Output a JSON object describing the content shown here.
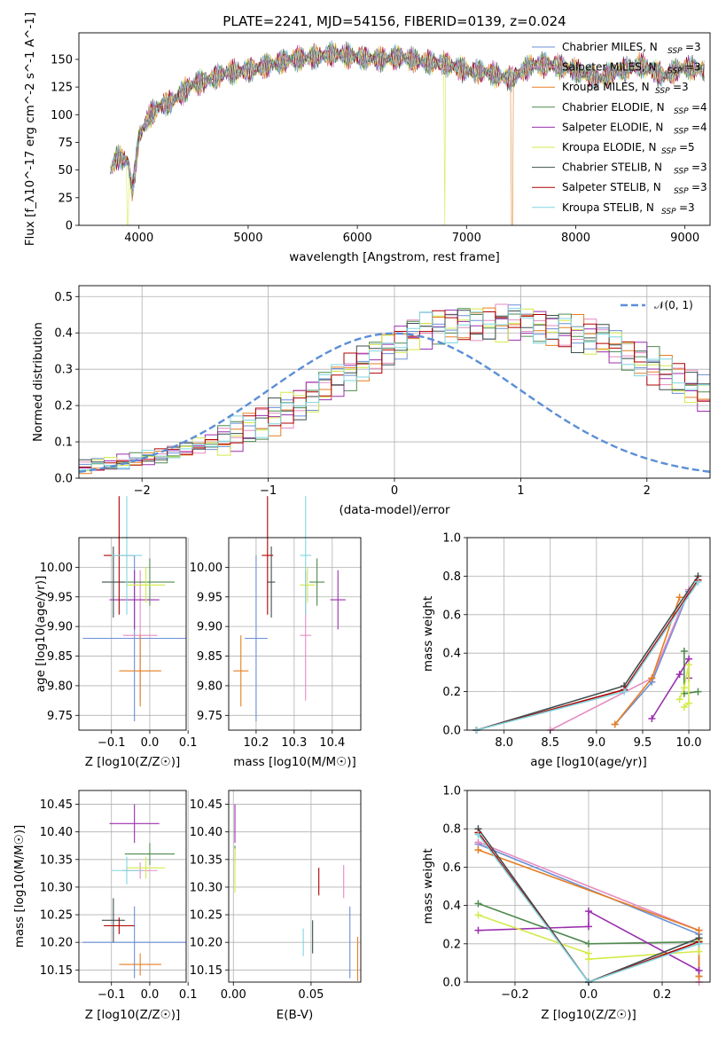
{
  "figure": {
    "title": "PLATE=2241, MJD=54156, FIBERID=0139, z=0.024",
    "models": [
      {
        "name": "Chabrier MILES, N$_{SSP}$=3",
        "legend": "Chabrier MILES, N",
        "sub": "SSP",
        "tail": "=3",
        "color": "#6b8fd6"
      },
      {
        "name": "Salpeter MILES, N$_{SSP}$=3",
        "legend": "Salpeter MILES, N",
        "sub": "SSP",
        "tail": "=3",
        "color": "#e58bc0"
      },
      {
        "name": "Kroupa MILES, N$_{SSP}$=3",
        "legend": "Kroupa MILES, N",
        "sub": "SSP",
        "tail": "=3",
        "color": "#e67e22"
      },
      {
        "name": "Chabrier ELODIE, N$_{SSP}$=4",
        "legend": "Chabrier ELODIE, N",
        "sub": "SSP",
        "tail": "=4",
        "color": "#4f8a4f"
      },
      {
        "name": "Salpeter ELODIE, N$_{SSP}$=4",
        "legend": "Salpeter ELODIE, N",
        "sub": "SSP",
        "tail": "=4",
        "color": "#9b2fae"
      },
      {
        "name": "Kroupa ELODIE, N$_{SSP}$=5",
        "legend": "Kroupa ELODIE, N",
        "sub": "SSP",
        "tail": "=5",
        "color": "#d4ea4a"
      },
      {
        "name": "Chabrier STELIB, N$_{SSP}$=3",
        "legend": "Chabrier STELIB, N",
        "sub": "SSP",
        "tail": "=3",
        "color": "#3f4f4f"
      },
      {
        "name": "Salpeter STELIB, N$_{SSP}$=3",
        "legend": "Salpeter STELIB, N",
        "sub": "SSP",
        "tail": "=3",
        "color": "#b00000"
      },
      {
        "name": "Kroupa STELIB, N$_{SSP}$=3",
        "legend": "Kroupa STELIB, N",
        "sub": "SSP",
        "tail": "=3",
        "color": "#7fd6e0"
      }
    ]
  },
  "chart_data": [
    {
      "type": "line",
      "title": "PLATE=2241, MJD=54156, FIBERID=0139, z=0.024",
      "xlabel": "wavelength [Angstrom, rest frame]",
      "ylabel": "Flux [f_λ10^-17 erg cm^-2 s^-1 A^-1]",
      "xlim": [
        3450,
        9230
      ],
      "ylim": [
        0,
        174
      ],
      "xticks": [
        4000,
        5000,
        6000,
        7000,
        8000,
        9000
      ],
      "yticks": [
        0,
        25,
        50,
        75,
        100,
        125,
        150
      ],
      "legend_loc": "upper right",
      "spectrum_envelope": {
        "x": [
          3740,
          3800,
          3900,
          3940,
          4000,
          4100,
          4200,
          4300,
          4400,
          4500,
          4600,
          4800,
          5000,
          5200,
          5400,
          5600,
          5800,
          6000,
          6200,
          6400,
          6600,
          6800,
          7000,
          7200,
          7400,
          7600,
          7800,
          8000,
          8200,
          8400,
          8600,
          8800,
          9000,
          9180
        ],
        "y": [
          50,
          62,
          58,
          30,
          80,
          100,
          108,
          112,
          120,
          128,
          130,
          138,
          140,
          145,
          150,
          152,
          155,
          152,
          150,
          152,
          148,
          146,
          140,
          138,
          132,
          145,
          145,
          140,
          132,
          140,
          145,
          135,
          143,
          140
        ]
      },
      "dropouts": [
        {
          "series": "Kroupa ELODIE, N$_{SSP}$=5",
          "x": [
            3900,
            6800
          ]
        },
        {
          "series": "Kroupa MILES, N$_{SSP}$=3",
          "x": [
            7420
          ]
        }
      ]
    },
    {
      "type": "histogram",
      "xlabel": "(data-model)/error",
      "ylabel": "Normed distribution",
      "xlim": [
        -2.5,
        2.5
      ],
      "ylim": [
        0,
        0.53
      ],
      "xticks": [
        -2,
        -1,
        0,
        1,
        2
      ],
      "yticks": [
        0.0,
        0.1,
        0.2,
        0.3,
        0.4,
        0.5
      ],
      "reference": {
        "label": "$\\mathcal{N}(0,1)$",
        "label_text": "𝒩(0, 1)",
        "color": "#5b8fd6",
        "style": "dashed"
      },
      "bin_width": 0.1,
      "base_profile": [
        0.03,
        0.035,
        0.04,
        0.045,
        0.05,
        0.055,
        0.06,
        0.07,
        0.08,
        0.09,
        0.1,
        0.11,
        0.12,
        0.135,
        0.15,
        0.17,
        0.19,
        0.21,
        0.23,
        0.25,
        0.27,
        0.295,
        0.32,
        0.34,
        0.36,
        0.38,
        0.4,
        0.41,
        0.42,
        0.425,
        0.43,
        0.43,
        0.43,
        0.43,
        0.43,
        0.425,
        0.42,
        0.415,
        0.41,
        0.4,
        0.39,
        0.38,
        0.36,
        0.345,
        0.33,
        0.31,
        0.29,
        0.27,
        0.25,
        0.23,
        0.21,
        0.19,
        0.17,
        0.15,
        0.135,
        0.12,
        0.11,
        0.1,
        0.09,
        0.08,
        0.07,
        0.06,
        0.055,
        0.05,
        0.045,
        0.04,
        0.035,
        0.03,
        0.025,
        0.022,
        0.02,
        0.018,
        0.016
      ]
    },
    {
      "type": "scatter_errorbar",
      "xlabel": "Z [log10(Z/Z☉)]",
      "ylabel": "age [log10(age/yr)]",
      "xlim": [
        -0.185,
        0.095
      ],
      "ylim": [
        9.725,
        10.05
      ],
      "xticks": [
        -0.1,
        0.0,
        0.1
      ],
      "yticks": [
        9.75,
        9.8,
        9.85,
        9.9,
        9.95,
        10.0
      ],
      "points": [
        {
          "x": -0.04,
          "y": 9.88,
          "xerr": 0.135,
          "yerr": 0.14
        },
        {
          "x": -0.025,
          "y": 9.885,
          "xerr": 0.045,
          "yerr": 0.11
        },
        {
          "x": -0.025,
          "y": 9.825,
          "xerr": 0.055,
          "yerr": 0.06
        },
        {
          "x": 0.0,
          "y": 9.975,
          "xerr": 0.065,
          "yerr": 0.04
        },
        {
          "x": -0.04,
          "y": 9.945,
          "xerr": 0.065,
          "yerr": 0.05
        },
        {
          "x": -0.01,
          "y": 9.97,
          "xerr": 0.05,
          "yerr": 0.03
        },
        {
          "x": -0.095,
          "y": 9.975,
          "xerr": 0.03,
          "yerr": 0.06
        },
        {
          "x": -0.08,
          "y": 10.02,
          "xerr": 0.04,
          "yerr": 0.1
        },
        {
          "x": -0.06,
          "y": 10.02,
          "xerr": 0.04,
          "yerr": 0.1
        }
      ]
    },
    {
      "type": "scatter_errorbar",
      "xlabel": "mass [log10(M/M☉)]",
      "xlim": [
        10.128,
        10.475
      ],
      "ylim": [
        9.725,
        10.05
      ],
      "xticks": [
        10.2,
        10.3,
        10.4
      ],
      "yticks": [
        9.75,
        9.8,
        9.85,
        9.9,
        9.95,
        10.0
      ],
      "points": [
        {
          "x": 10.2,
          "y": 9.88,
          "xerr": 0.03,
          "yerr": 0.14
        },
        {
          "x": 10.33,
          "y": 9.885,
          "xerr": 0.015,
          "yerr": 0.11
        },
        {
          "x": 10.16,
          "y": 9.825,
          "xerr": 0.02,
          "yerr": 0.06
        },
        {
          "x": 10.36,
          "y": 9.975,
          "xerr": 0.02,
          "yerr": 0.04
        },
        {
          "x": 10.415,
          "y": 9.945,
          "xerr": 0.02,
          "yerr": 0.05
        },
        {
          "x": 10.335,
          "y": 9.97,
          "xerr": 0.02,
          "yerr": 0.03
        },
        {
          "x": 10.24,
          "y": 9.975,
          "xerr": 0.01,
          "yerr": 0.06
        },
        {
          "x": 10.23,
          "y": 10.02,
          "xerr": 0.015,
          "yerr": 0.1
        },
        {
          "x": 10.33,
          "y": 10.02,
          "xerr": 0.015,
          "yerr": 0.1
        }
      ]
    },
    {
      "type": "line",
      "xlabel": "age [log10(age/yr)]",
      "ylabel": "mass weight",
      "xlim": [
        7.6,
        10.23
      ],
      "ylim": [
        0,
        1.0
      ],
      "xticks": [
        8.0,
        8.5,
        9.0,
        9.5,
        10.0
      ],
      "yticks": [
        0.0,
        0.2,
        0.4,
        0.6,
        0.8,
        1.0
      ],
      "series": [
        {
          "x": [
            9.2,
            9.6,
            10.0
          ],
          "y": [
            0.03,
            0.25,
            0.72
          ]
        },
        {
          "x": [
            8.5,
            9.6,
            10.0
          ],
          "y": [
            0.0,
            0.27,
            0.73
          ]
        },
        {
          "x": [
            9.2,
            9.6,
            9.9
          ],
          "y": [
            0.03,
            0.27,
            0.69
          ]
        },
        {
          "x": [
            9.95,
            9.95,
            10.1
          ],
          "y": [
            0.41,
            0.19,
            0.2
          ]
        },
        {
          "x": [
            9.6,
            9.9,
            10.0,
            10.0
          ],
          "y": [
            0.06,
            0.29,
            0.37,
            0.27
          ]
        },
        {
          "x": [
            9.9,
            9.95,
            10.0,
            10.0,
            9.95
          ],
          "y": [
            0.16,
            0.22,
            0.34,
            0.14,
            0.12
          ]
        },
        {
          "x": [
            7.7,
            9.3,
            10.1
          ],
          "y": [
            0.0,
            0.23,
            0.8
          ]
        },
        {
          "x": [
            7.7,
            9.3,
            10.1
          ],
          "y": [
            0.0,
            0.21,
            0.78
          ]
        },
        {
          "x": [
            7.7,
            9.3,
            10.1
          ],
          "y": [
            0.0,
            0.2,
            0.77
          ]
        }
      ]
    },
    {
      "type": "scatter_errorbar",
      "xlabel": "Z [log10(Z/Z☉)]",
      "ylabel": "mass [log10(M/M☉)]",
      "xlim": [
        -0.185,
        0.095
      ],
      "ylim": [
        10.128,
        10.475
      ],
      "xticks": [
        -0.1,
        0.0,
        0.1
      ],
      "yticks": [
        10.15,
        10.2,
        10.25,
        10.3,
        10.35,
        10.4,
        10.45
      ],
      "points": [
        {
          "x": -0.04,
          "y": 10.2,
          "xerr": 0.135,
          "yerr": 0.065
        },
        {
          "x": -0.025,
          "y": 10.33,
          "xerr": 0.045,
          "yerr": 0.015
        },
        {
          "x": -0.025,
          "y": 10.16,
          "xerr": 0.055,
          "yerr": 0.02
        },
        {
          "x": 0.0,
          "y": 10.36,
          "xerr": 0.065,
          "yerr": 0.02
        },
        {
          "x": -0.04,
          "y": 10.415,
          "xerr": 0.065,
          "yerr": 0.035
        },
        {
          "x": -0.01,
          "y": 10.335,
          "xerr": 0.05,
          "yerr": 0.02
        },
        {
          "x": -0.095,
          "y": 10.24,
          "xerr": 0.03,
          "yerr": 0.04
        },
        {
          "x": -0.08,
          "y": 10.23,
          "xerr": 0.04,
          "yerr": 0.015
        },
        {
          "x": -0.06,
          "y": 10.33,
          "xerr": 0.04,
          "yerr": 0.025
        }
      ]
    },
    {
      "type": "scatter_errorbar",
      "xlabel": "E(B-V)",
      "xlim": [
        -0.003,
        0.082
      ],
      "ylim": [
        10.128,
        10.475
      ],
      "xticks": [
        0.0,
        0.05
      ],
      "yticks": [
        10.15,
        10.2,
        10.25,
        10.3,
        10.35,
        10.4,
        10.45
      ],
      "points": [
        {
          "x": 0.075,
          "y": 10.2,
          "xerr": 0.0,
          "yerr": 0.065
        },
        {
          "x": 0.071,
          "y": 10.31,
          "xerr": 0.0,
          "yerr": 0.03
        },
        {
          "x": 0.08,
          "y": 10.17,
          "xerr": 0.0,
          "yerr": 0.04
        },
        {
          "x": 0.001,
          "y": 10.36,
          "xerr": 0.0,
          "yerr": 0.015
        },
        {
          "x": 0.001,
          "y": 10.415,
          "xerr": 0.0,
          "yerr": 0.035
        },
        {
          "x": 0.001,
          "y": 10.33,
          "xerr": 0.0,
          "yerr": 0.04
        },
        {
          "x": 0.051,
          "y": 10.21,
          "xerr": 0.0,
          "yerr": 0.03
        },
        {
          "x": 0.055,
          "y": 10.31,
          "xerr": 0.0,
          "yerr": 0.025
        },
        {
          "x": 0.045,
          "y": 10.2,
          "xerr": 0.0,
          "yerr": 0.025
        }
      ]
    },
    {
      "type": "line",
      "xlabel": "Z [log10(Z/Z☉)]",
      "ylabel": "mass weight",
      "xlim": [
        -0.33,
        0.33
      ],
      "ylim": [
        0,
        1.0
      ],
      "xticks": [
        -0.2,
        0.0,
        0.2
      ],
      "yticks": [
        0.0,
        0.2,
        0.4,
        0.6,
        0.8,
        1.0
      ],
      "series": [
        {
          "x": [
            -0.3,
            0.3,
            0.3
          ],
          "y": [
            0.72,
            0.25,
            0.03
          ]
        },
        {
          "x": [
            -0.3,
            0.3,
            0.3
          ],
          "y": [
            0.73,
            0.27,
            0.0
          ]
        },
        {
          "x": [
            -0.3,
            0.3,
            0.3
          ],
          "y": [
            0.69,
            0.27,
            0.03
          ]
        },
        {
          "x": [
            -0.3,
            0.0,
            0.3
          ],
          "y": [
            0.41,
            0.2,
            0.21
          ]
        },
        {
          "x": [
            -0.3,
            0.0,
            0.0,
            0.3
          ],
          "y": [
            0.27,
            0.29,
            0.37,
            0.06
          ]
        },
        {
          "x": [
            -0.3,
            0.0,
            0.0,
            0.3,
            0.3
          ],
          "y": [
            0.35,
            0.15,
            0.12,
            0.16,
            0.22
          ]
        },
        {
          "x": [
            -0.3,
            0.0,
            0.3
          ],
          "y": [
            0.8,
            0.0,
            0.23
          ]
        },
        {
          "x": [
            -0.3,
            0.0,
            0.3
          ],
          "y": [
            0.78,
            0.0,
            0.21
          ]
        },
        {
          "x": [
            -0.3,
            0.0,
            0.3
          ],
          "y": [
            0.77,
            0.0,
            0.2
          ]
        }
      ]
    }
  ]
}
